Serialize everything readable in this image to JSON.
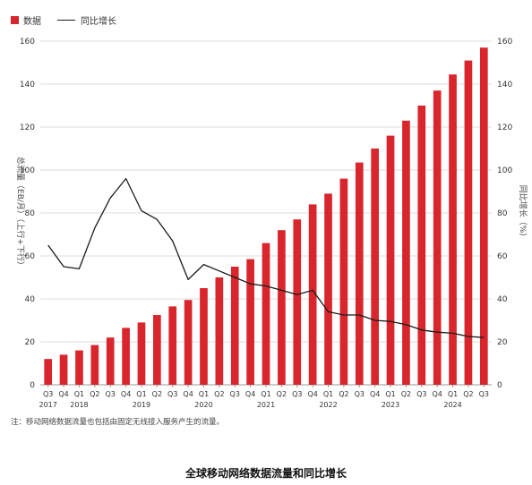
{
  "legend": {
    "bar_label": "数据",
    "line_label": "同比增长"
  },
  "note": "注：移动网络数据流量也包括由固定无线接入服务产生的流量。",
  "title": "全球移动网络数据流量和同比增长",
  "colors": {
    "bar": "#d9262c",
    "line": "#1a1a1a",
    "grid": "#dddddd",
    "axis": "#999999"
  },
  "chart_data": {
    "type": "bar",
    "title": "全球移动网络数据流量和同比增长",
    "categories": [
      "Q3",
      "Q4",
      "Q1",
      "Q2",
      "Q3",
      "Q4",
      "Q1",
      "Q2",
      "Q3",
      "Q4",
      "Q1",
      "Q2",
      "Q3",
      "Q4",
      "Q1",
      "Q2",
      "Q3",
      "Q4",
      "Q1",
      "Q2",
      "Q3",
      "Q4",
      "Q1",
      "Q2",
      "Q3",
      "Q4",
      "Q1",
      "Q2",
      "Q3"
    ],
    "years": [
      {
        "label": "2017",
        "index": 0
      },
      {
        "label": "2018",
        "index": 2
      },
      {
        "label": "2019",
        "index": 6
      },
      {
        "label": "2020",
        "index": 10
      },
      {
        "label": "2021",
        "index": 14
      },
      {
        "label": "2022",
        "index": 18
      },
      {
        "label": "2023",
        "index": 22
      },
      {
        "label": "2024",
        "index": 26
      }
    ],
    "ylabel_left": "总流量（EB/月）（上行+下行）",
    "ylabel_right": "同比增长（%）",
    "ylim": [
      0,
      160
    ],
    "yticks": [
      0,
      20,
      40,
      60,
      80,
      100,
      120,
      140,
      160
    ],
    "grid": true,
    "legend_position": "top-left",
    "series": [
      {
        "name": "数据",
        "type": "bar",
        "values": [
          12,
          14,
          16,
          18.5,
          22,
          26.5,
          29,
          32.5,
          36.5,
          39.5,
          45,
          50,
          55,
          58.5,
          66,
          72,
          77,
          84,
          89,
          96,
          103.5,
          110,
          116,
          123,
          130,
          137,
          144.5,
          151,
          157
        ]
      },
      {
        "name": "同比增长",
        "type": "line",
        "axis": "right",
        "values": [
          65,
          55,
          54,
          73,
          87,
          96,
          81,
          77,
          67,
          49,
          56,
          53,
          50,
          47,
          46,
          44,
          42,
          44,
          34,
          32.5,
          32.5,
          30,
          29.5,
          28,
          25.5,
          24.5,
          24,
          22.5,
          22
        ]
      }
    ]
  }
}
